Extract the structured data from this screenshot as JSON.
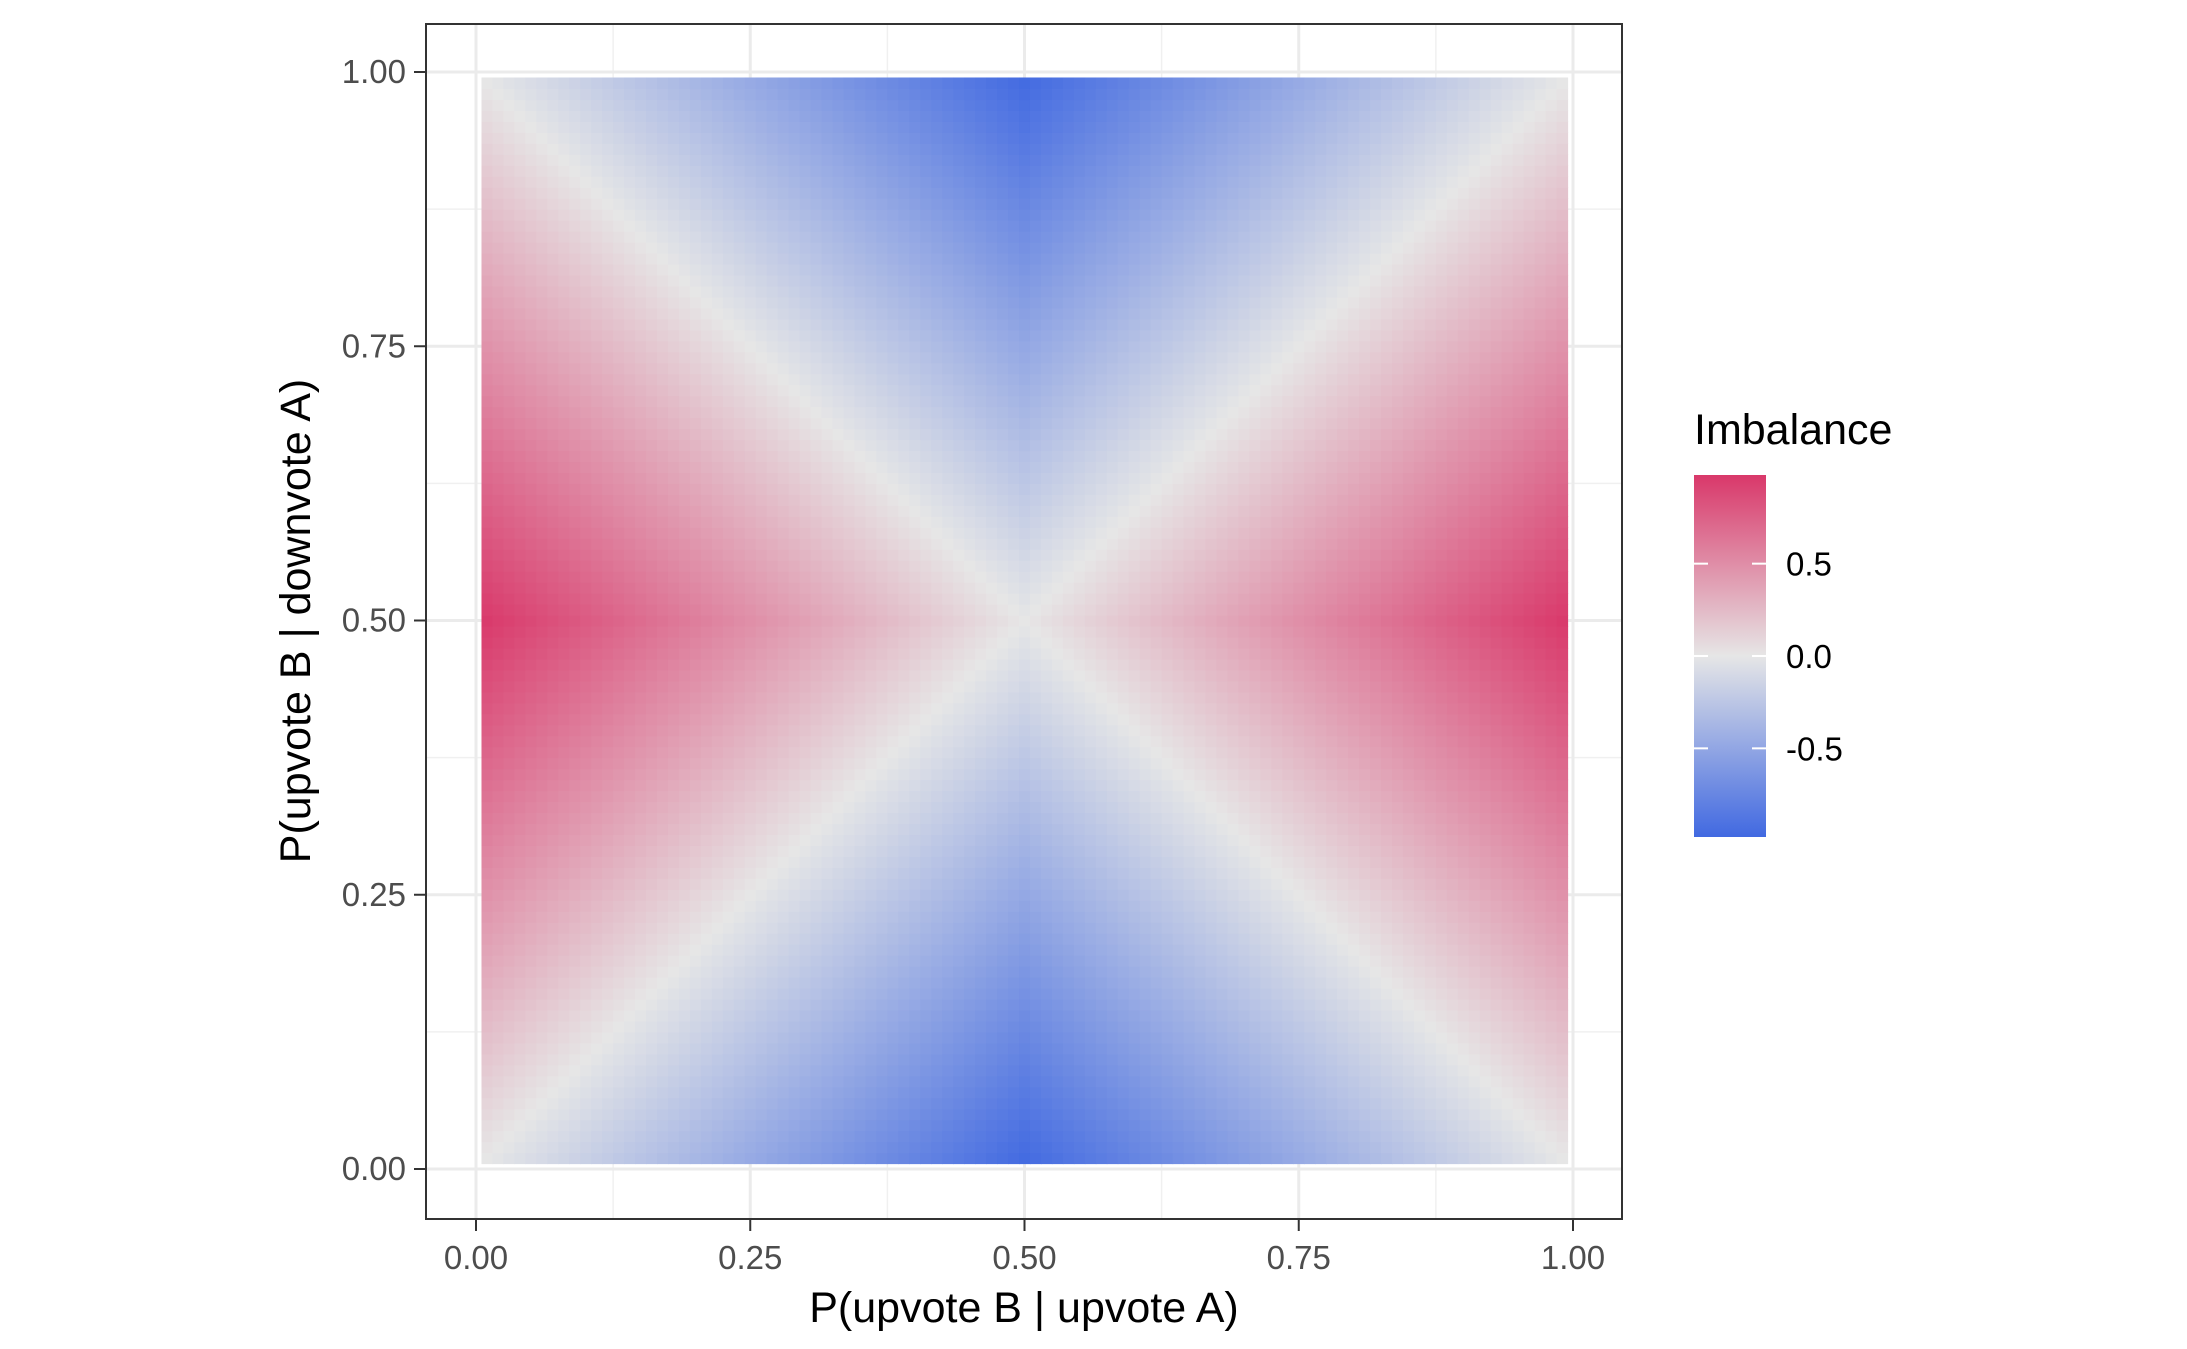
{
  "chart_data": {
    "type": "heatmap",
    "title": "",
    "xlabel": "P(upvote B | upvote A)",
    "ylabel": "P(upvote B | downvote A)",
    "xlim": [
      0,
      1
    ],
    "ylim": [
      0,
      1
    ],
    "x_ticks": [
      "0.00",
      "0.25",
      "0.50",
      "0.75",
      "1.00"
    ],
    "y_ticks": [
      "0.00",
      "0.25",
      "0.50",
      "0.75",
      "1.00"
    ],
    "grid_resolution": 101,
    "value_formula": "|x - 0.5| - |y - 0.5| scaled by 2",
    "corner_values": {
      "left_middle": 1.0,
      "right_middle": 1.0,
      "top_middle": -1.0,
      "bottom_middle": -1.0,
      "center": 0.0
    },
    "legend": {
      "title": "Imbalance",
      "position": "right",
      "breaks": [
        0.5,
        0.0,
        -0.5
      ],
      "labels": [
        "0.5",
        "0.0",
        "-0.5"
      ],
      "limits": [
        -0.98,
        0.98
      ]
    },
    "colors": {
      "low": "#4169e1",
      "mid": "#e6e6e6",
      "high": "#d9386a"
    },
    "grid": true,
    "theme": "bw"
  }
}
